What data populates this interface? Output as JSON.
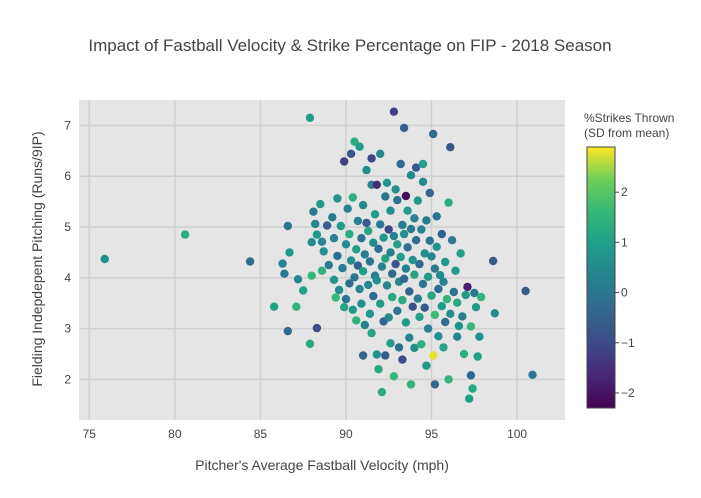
{
  "chart_data": {
    "type": "scatter",
    "title": "Impact of Fastball Velocity & Strike Percentage on FIP - 2018 Season",
    "xlabel": "Pitcher's Average Fastball Velocity (mph)",
    "ylabel": "Fielding Indepdepent Pitching (Runs/9IP)",
    "xlim": [
      74.4,
      102.8
    ],
    "ylim": [
      1.2,
      7.5
    ],
    "xticks": [
      75,
      80,
      85,
      90,
      95,
      100
    ],
    "yticks": [
      2,
      3,
      4,
      5,
      6,
      7
    ],
    "grid": true,
    "colorbar": {
      "title_line1": "%Strikes Thrown",
      "title_line2": "(SD from mean)",
      "range": [
        -2.3,
        2.9
      ],
      "ticks": [
        -2,
        -1,
        0,
        1,
        2
      ],
      "colorscale": "viridis"
    },
    "points": [
      {
        "x": 75.9,
        "y": 4.37,
        "c": 0.6
      },
      {
        "x": 80.6,
        "y": 4.85,
        "c": 1.3
      },
      {
        "x": 84.4,
        "y": 4.32,
        "c": -0.3
      },
      {
        "x": 85.8,
        "y": 3.43,
        "c": 1.0
      },
      {
        "x": 86.3,
        "y": 4.28,
        "c": 0.3
      },
      {
        "x": 86.4,
        "y": 4.08,
        "c": 0.1
      },
      {
        "x": 86.6,
        "y": 2.95,
        "c": -0.3
      },
      {
        "x": 86.6,
        "y": 5.02,
        "c": 0.0
      },
      {
        "x": 86.7,
        "y": 4.5,
        "c": 0.8
      },
      {
        "x": 87.1,
        "y": 3.43,
        "c": 1.5
      },
      {
        "x": 87.2,
        "y": 3.97,
        "c": 0.4
      },
      {
        "x": 87.5,
        "y": 3.75,
        "c": 1.0
      },
      {
        "x": 87.9,
        "y": 7.15,
        "c": 0.9
      },
      {
        "x": 87.9,
        "y": 2.7,
        "c": 1.2
      },
      {
        "x": 88.0,
        "y": 4.04,
        "c": 1.6
      },
      {
        "x": 88.0,
        "y": 4.7,
        "c": 0.5
      },
      {
        "x": 88.1,
        "y": 5.3,
        "c": 0.2
      },
      {
        "x": 88.2,
        "y": 5.06,
        "c": 0.4
      },
      {
        "x": 88.3,
        "y": 4.85,
        "c": 0.8
      },
      {
        "x": 88.3,
        "y": 3.01,
        "c": -0.9
      },
      {
        "x": 88.5,
        "y": 5.45,
        "c": 0.9
      },
      {
        "x": 88.6,
        "y": 4.71,
        "c": 0.4
      },
      {
        "x": 88.6,
        "y": 4.14,
        "c": 1.5
      },
      {
        "x": 88.7,
        "y": 4.52,
        "c": 0.6
      },
      {
        "x": 88.9,
        "y": 5.03,
        "c": -0.5
      },
      {
        "x": 89.0,
        "y": 4.25,
        "c": 0.2
      },
      {
        "x": 89.2,
        "y": 5.19,
        "c": 0.1
      },
      {
        "x": 89.3,
        "y": 3.96,
        "c": 0.8
      },
      {
        "x": 89.3,
        "y": 4.78,
        "c": 0.3
      },
      {
        "x": 89.4,
        "y": 3.61,
        "c": 1.6
      },
      {
        "x": 89.5,
        "y": 4.43,
        "c": -0.2
      },
      {
        "x": 89.5,
        "y": 5.56,
        "c": 0.7
      },
      {
        "x": 89.6,
        "y": 3.76,
        "c": 0.5
      },
      {
        "x": 89.7,
        "y": 5.02,
        "c": 0.9
      },
      {
        "x": 89.8,
        "y": 4.19,
        "c": 0.2
      },
      {
        "x": 89.9,
        "y": 3.42,
        "c": 1.1
      },
      {
        "x": 89.9,
        "y": 6.29,
        "c": -1.2
      },
      {
        "x": 90.0,
        "y": 4.66,
        "c": 0.5
      },
      {
        "x": 90.0,
        "y": 3.58,
        "c": 0.0
      },
      {
        "x": 90.1,
        "y": 5.36,
        "c": 0.3
      },
      {
        "x": 90.2,
        "y": 4.86,
        "c": 1.3
      },
      {
        "x": 90.2,
        "y": 3.89,
        "c": -0.2
      },
      {
        "x": 90.3,
        "y": 4.34,
        "c": 0.6
      },
      {
        "x": 90.3,
        "y": 6.44,
        "c": -0.8
      },
      {
        "x": 90.4,
        "y": 3.37,
        "c": 0.8
      },
      {
        "x": 90.4,
        "y": 5.58,
        "c": 1.4
      },
      {
        "x": 90.5,
        "y": 4.01,
        "c": 0.1
      },
      {
        "x": 90.5,
        "y": 6.68,
        "c": 1.3
      },
      {
        "x": 90.6,
        "y": 4.56,
        "c": 0.9
      },
      {
        "x": 90.6,
        "y": 3.16,
        "c": 1.5
      },
      {
        "x": 90.7,
        "y": 5.12,
        "c": 0.2
      },
      {
        "x": 90.7,
        "y": 4.24,
        "c": -0.5
      },
      {
        "x": 90.8,
        "y": 3.78,
        "c": 0.4
      },
      {
        "x": 90.8,
        "y": 6.58,
        "c": 0.9
      },
      {
        "x": 90.9,
        "y": 4.78,
        "c": -0.1
      },
      {
        "x": 90.9,
        "y": 3.49,
        "c": 0.7
      },
      {
        "x": 91.0,
        "y": 5.43,
        "c": 0.5
      },
      {
        "x": 91.0,
        "y": 4.13,
        "c": 1.0
      },
      {
        "x": 91.0,
        "y": 2.47,
        "c": -0.4
      },
      {
        "x": 91.1,
        "y": 4.46,
        "c": 0.2
      },
      {
        "x": 91.1,
        "y": 3.07,
        "c": 0.3
      },
      {
        "x": 91.2,
        "y": 6.12,
        "c": 0.6
      },
      {
        "x": 91.2,
        "y": 5.08,
        "c": -0.7
      },
      {
        "x": 91.3,
        "y": 3.86,
        "c": 0.4
      },
      {
        "x": 91.3,
        "y": 4.92,
        "c": 1.2
      },
      {
        "x": 91.4,
        "y": 4.32,
        "c": 0.0
      },
      {
        "x": 91.4,
        "y": 3.29,
        "c": 0.8
      },
      {
        "x": 91.5,
        "y": 5.83,
        "c": 0.3
      },
      {
        "x": 91.5,
        "y": 6.35,
        "c": -1.1
      },
      {
        "x": 91.5,
        "y": 2.91,
        "c": 1.1
      },
      {
        "x": 91.6,
        "y": 4.69,
        "c": 0.5
      },
      {
        "x": 91.6,
        "y": 3.64,
        "c": -0.3
      },
      {
        "x": 91.7,
        "y": 5.25,
        "c": 0.9
      },
      {
        "x": 91.7,
        "y": 4.04,
        "c": 0.2
      },
      {
        "x": 91.8,
        "y": 2.49,
        "c": 0.7
      },
      {
        "x": 91.8,
        "y": 5.83,
        "c": -1.6
      },
      {
        "x": 91.8,
        "y": 3.95,
        "c": 0.6
      },
      {
        "x": 91.9,
        "y": 4.57,
        "c": -0.2
      },
      {
        "x": 91.9,
        "y": 2.2,
        "c": 1.2
      },
      {
        "x": 92.0,
        "y": 5.05,
        "c": 0.1
      },
      {
        "x": 92.0,
        "y": 3.49,
        "c": 0.9
      },
      {
        "x": 92.0,
        "y": 6.44,
        "c": 0.4
      },
      {
        "x": 92.1,
        "y": 4.22,
        "c": 0.3
      },
      {
        "x": 92.1,
        "y": 1.75,
        "c": 1.3
      },
      {
        "x": 92.2,
        "y": 4.79,
        "c": 0.8
      },
      {
        "x": 92.2,
        "y": 3.14,
        "c": -0.4
      },
      {
        "x": 92.3,
        "y": 5.6,
        "c": 0.0
      },
      {
        "x": 92.3,
        "y": 4.38,
        "c": 1.1
      },
      {
        "x": 92.3,
        "y": 2.47,
        "c": -0.6
      },
      {
        "x": 92.4,
        "y": 3.85,
        "c": 0.4
      },
      {
        "x": 92.4,
        "y": 5.87,
        "c": 0.8
      },
      {
        "x": 92.5,
        "y": 4.95,
        "c": -1.0
      },
      {
        "x": 92.5,
        "y": 3.22,
        "c": 0.5
      },
      {
        "x": 92.6,
        "y": 4.5,
        "c": 0.2
      },
      {
        "x": 92.6,
        "y": 2.71,
        "c": 0.9
      },
      {
        "x": 92.6,
        "y": 5.32,
        "c": 0.6
      },
      {
        "x": 92.7,
        "y": 4.08,
        "c": -0.3
      },
      {
        "x": 92.7,
        "y": 3.62,
        "c": 1.2
      },
      {
        "x": 92.8,
        "y": 4.82,
        "c": 0.3
      },
      {
        "x": 92.8,
        "y": 2.06,
        "c": 1.6
      },
      {
        "x": 92.8,
        "y": 7.27,
        "c": -1.2
      },
      {
        "x": 92.9,
        "y": 5.74,
        "c": 0.7
      },
      {
        "x": 92.9,
        "y": 4.27,
        "c": -0.8
      },
      {
        "x": 93.0,
        "y": 3.35,
        "c": 0.1
      },
      {
        "x": 93.0,
        "y": 4.66,
        "c": 1.0
      },
      {
        "x": 93.0,
        "y": 5.53,
        "c": -0.1
      },
      {
        "x": 93.1,
        "y": 3.92,
        "c": 0.4
      },
      {
        "x": 93.1,
        "y": 2.63,
        "c": -0.2
      },
      {
        "x": 93.2,
        "y": 4.41,
        "c": 0.9
      },
      {
        "x": 93.2,
        "y": 6.24,
        "c": -0.3
      },
      {
        "x": 93.3,
        "y": 5.04,
        "c": 0.2
      },
      {
        "x": 93.3,
        "y": 3.56,
        "c": 1.3
      },
      {
        "x": 93.3,
        "y": 2.39,
        "c": -0.9
      },
      {
        "x": 93.4,
        "y": 4.86,
        "c": 0.6
      },
      {
        "x": 93.4,
        "y": 3.98,
        "c": -0.4
      },
      {
        "x": 93.4,
        "y": 6.95,
        "c": -0.6
      },
      {
        "x": 93.5,
        "y": 5.61,
        "c": -2.1
      },
      {
        "x": 93.5,
        "y": 4.18,
        "c": 0.3
      },
      {
        "x": 93.5,
        "y": 3.12,
        "c": 0.8
      },
      {
        "x": 93.6,
        "y": 4.6,
        "c": -0.1
      },
      {
        "x": 93.6,
        "y": 5.32,
        "c": 0.9
      },
      {
        "x": 93.7,
        "y": 3.73,
        "c": -0.5
      },
      {
        "x": 93.7,
        "y": 2.82,
        "c": 0.4
      },
      {
        "x": 93.8,
        "y": 4.96,
        "c": 0.1
      },
      {
        "x": 93.8,
        "y": 6.02,
        "c": 0.5
      },
      {
        "x": 93.8,
        "y": 1.9,
        "c": 1.5
      },
      {
        "x": 93.9,
        "y": 4.35,
        "c": 0.7
      },
      {
        "x": 93.9,
        "y": 3.43,
        "c": -0.8
      },
      {
        "x": 94.0,
        "y": 5.17,
        "c": 0.3
      },
      {
        "x": 94.0,
        "y": 4.06,
        "c": 1.1
      },
      {
        "x": 94.0,
        "y": 2.62,
        "c": 0.6
      },
      {
        "x": 94.1,
        "y": 4.74,
        "c": -0.2
      },
      {
        "x": 94.1,
        "y": 6.17,
        "c": -0.7
      },
      {
        "x": 94.2,
        "y": 3.59,
        "c": 0.2
      },
      {
        "x": 94.2,
        "y": 5.52,
        "c": 0.8
      },
      {
        "x": 94.3,
        "y": 4.27,
        "c": -0.3
      },
      {
        "x": 94.3,
        "y": 3.23,
        "c": 1.0
      },
      {
        "x": 94.4,
        "y": 4.95,
        "c": 0.4
      },
      {
        "x": 94.4,
        "y": 2.69,
        "c": 1.4
      },
      {
        "x": 94.5,
        "y": 3.88,
        "c": 0.0
      },
      {
        "x": 94.5,
        "y": 5.89,
        "c": 0.5
      },
      {
        "x": 94.5,
        "y": 6.24,
        "c": 1.0
      },
      {
        "x": 94.6,
        "y": 4.48,
        "c": 0.6
      },
      {
        "x": 94.6,
        "y": 3.41,
        "c": -0.6
      },
      {
        "x": 94.7,
        "y": 5.13,
        "c": 0.2
      },
      {
        "x": 94.7,
        "y": 2.27,
        "c": 0.8
      },
      {
        "x": 94.8,
        "y": 4.02,
        "c": 0.9
      },
      {
        "x": 94.8,
        "y": 3.0,
        "c": 0.3
      },
      {
        "x": 94.9,
        "y": 4.73,
        "c": -0.1
      },
      {
        "x": 94.9,
        "y": 5.67,
        "c": -0.4
      },
      {
        "x": 95.0,
        "y": 3.65,
        "c": 1.2
      },
      {
        "x": 95.0,
        "y": 4.42,
        "c": 0.4
      },
      {
        "x": 95.1,
        "y": 2.47,
        "c": 2.8
      },
      {
        "x": 95.1,
        "y": 6.83,
        "c": -0.3
      },
      {
        "x": 95.2,
        "y": 4.18,
        "c": 0.1
      },
      {
        "x": 95.2,
        "y": 3.27,
        "c": 1.7
      },
      {
        "x": 95.2,
        "y": 1.9,
        "c": -0.3
      },
      {
        "x": 95.3,
        "y": 4.61,
        "c": 0.7
      },
      {
        "x": 95.3,
        "y": 5.21,
        "c": 0.0
      },
      {
        "x": 95.4,
        "y": 3.78,
        "c": -0.2
      },
      {
        "x": 95.4,
        "y": 2.85,
        "c": 0.6
      },
      {
        "x": 95.5,
        "y": 4.05,
        "c": 0.5
      },
      {
        "x": 95.6,
        "y": 3.44,
        "c": 0.9
      },
      {
        "x": 95.6,
        "y": 4.86,
        "c": -0.5
      },
      {
        "x": 95.7,
        "y": 2.63,
        "c": 1.1
      },
      {
        "x": 95.7,
        "y": 3.92,
        "c": 0.3
      },
      {
        "x": 95.8,
        "y": 3.13,
        "c": -0.2
      },
      {
        "x": 95.8,
        "y": 4.31,
        "c": 0.8
      },
      {
        "x": 95.9,
        "y": 3.58,
        "c": 1.5
      },
      {
        "x": 96.0,
        "y": 5.48,
        "c": 1.3
      },
      {
        "x": 96.0,
        "y": 2.0,
        "c": 1.5
      },
      {
        "x": 96.1,
        "y": 6.57,
        "c": -0.8
      },
      {
        "x": 96.1,
        "y": 3.29,
        "c": 0.6
      },
      {
        "x": 96.2,
        "y": 4.74,
        "c": 0.2
      },
      {
        "x": 96.3,
        "y": 3.72,
        "c": -0.1
      },
      {
        "x": 96.4,
        "y": 4.14,
        "c": 0.9
      },
      {
        "x": 96.5,
        "y": 2.84,
        "c": 0.4
      },
      {
        "x": 96.5,
        "y": 3.51,
        "c": 1.2
      },
      {
        "x": 96.6,
        "y": 3.05,
        "c": 0.7
      },
      {
        "x": 96.7,
        "y": 4.48,
        "c": 1.0
      },
      {
        "x": 96.8,
        "y": 3.24,
        "c": 0.3
      },
      {
        "x": 96.9,
        "y": 2.5,
        "c": 1.4
      },
      {
        "x": 97.0,
        "y": 3.66,
        "c": 0.8
      },
      {
        "x": 97.1,
        "y": 3.82,
        "c": -1.8
      },
      {
        "x": 97.2,
        "y": 1.62,
        "c": 1.0
      },
      {
        "x": 97.3,
        "y": 2.08,
        "c": -0.4
      },
      {
        "x": 97.3,
        "y": 3.04,
        "c": 1.6
      },
      {
        "x": 97.4,
        "y": 1.82,
        "c": 1.2
      },
      {
        "x": 97.5,
        "y": 3.7,
        "c": 0.1
      },
      {
        "x": 97.6,
        "y": 3.42,
        "c": 0.9
      },
      {
        "x": 97.7,
        "y": 2.45,
        "c": 1.0
      },
      {
        "x": 97.8,
        "y": 2.84,
        "c": 0.6
      },
      {
        "x": 97.9,
        "y": 3.62,
        "c": 1.5
      },
      {
        "x": 98.6,
        "y": 4.33,
        "c": -0.6
      },
      {
        "x": 98.7,
        "y": 3.3,
        "c": 0.5
      },
      {
        "x": 100.5,
        "y": 3.74,
        "c": -0.6
      },
      {
        "x": 100.9,
        "y": 2.09,
        "c": 0.0
      }
    ]
  }
}
